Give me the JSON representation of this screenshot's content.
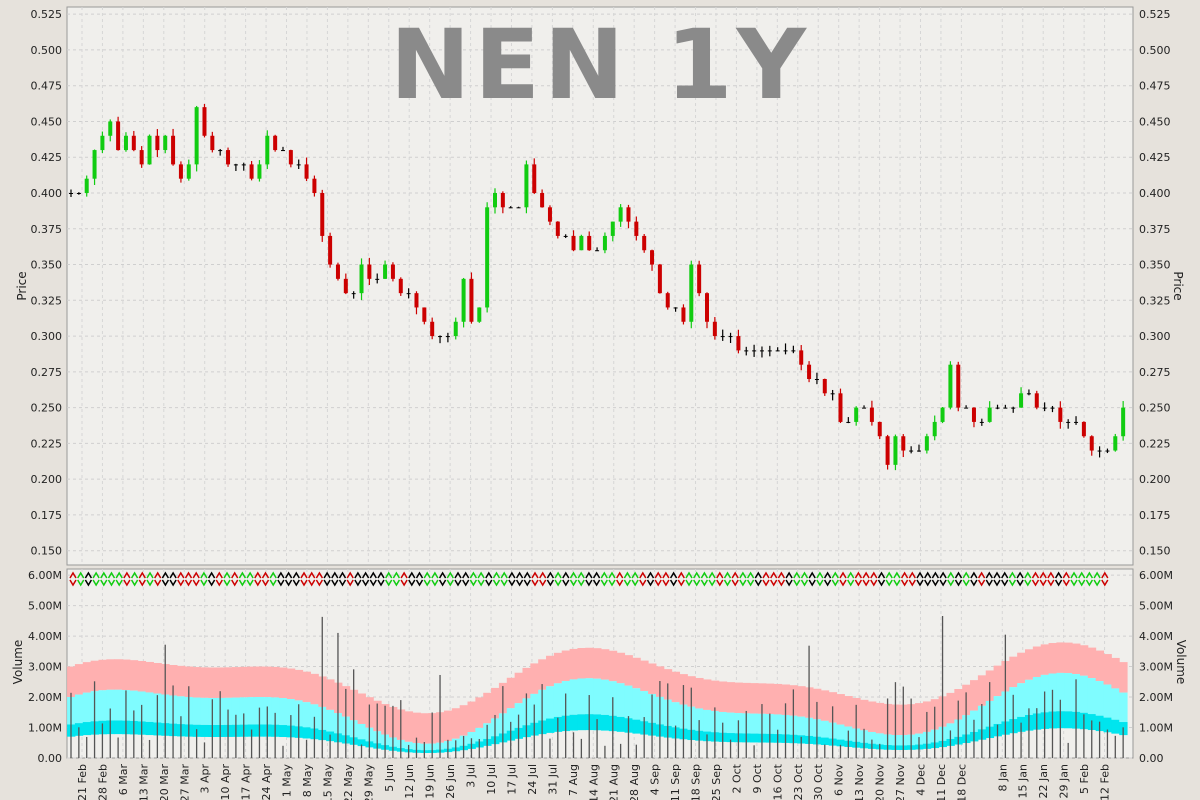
{
  "chart_data": [
    {
      "type": "ohlc",
      "title": "NEN 1Y",
      "ylabel": "Price",
      "ylim": [
        0.14,
        0.53
      ],
      "yticks": [
        "0.525",
        "0.500",
        "0.475",
        "0.450",
        "0.425",
        "0.400",
        "0.375",
        "0.350",
        "0.325",
        "0.300",
        "0.275",
        "0.250",
        "0.225",
        "0.200",
        "0.175",
        "0.150"
      ],
      "grid": true,
      "close_approx": [
        0.4,
        0.4,
        0.41,
        0.43,
        0.44,
        0.45,
        0.43,
        0.44,
        0.43,
        0.42,
        0.44,
        0.43,
        0.44,
        0.42,
        0.41,
        0.42,
        0.46,
        0.44,
        0.43,
        0.43,
        0.42,
        0.42,
        0.42,
        0.41,
        0.42,
        0.44,
        0.43,
        0.43,
        0.42,
        0.42,
        0.41,
        0.4,
        0.37,
        0.35,
        0.34,
        0.33,
        0.33,
        0.35,
        0.34,
        0.34,
        0.35,
        0.34,
        0.33,
        0.33,
        0.32,
        0.31,
        0.3,
        0.3,
        0.3,
        0.31,
        0.34,
        0.31,
        0.32,
        0.39,
        0.4,
        0.39,
        0.39,
        0.39,
        0.42,
        0.4,
        0.39,
        0.38,
        0.37,
        0.37,
        0.36,
        0.37,
        0.36,
        0.36,
        0.37,
        0.38,
        0.39,
        0.38,
        0.37,
        0.36,
        0.35,
        0.33,
        0.32,
        0.32,
        0.31,
        0.35,
        0.33,
        0.31,
        0.3,
        0.3,
        0.3,
        0.29,
        0.29,
        0.29,
        0.29,
        0.29,
        0.29,
        0.29,
        0.29,
        0.28,
        0.27,
        0.27,
        0.26,
        0.26,
        0.24,
        0.24,
        0.25,
        0.25,
        0.24,
        0.23,
        0.21,
        0.23,
        0.22,
        0.22,
        0.22,
        0.23,
        0.24,
        0.25,
        0.28,
        0.25,
        0.25,
        0.24,
        0.24,
        0.25,
        0.25,
        0.25,
        0.25,
        0.26,
        0.26,
        0.25,
        0.25,
        0.25,
        0.24,
        0.24,
        0.24,
        0.23,
        0.22,
        0.22,
        0.22,
        0.23,
        0.25
      ]
    },
    {
      "type": "bar",
      "ylabel": "Volume",
      "ylim": [
        0,
        6200000
      ],
      "yticks": [
        "6.00M",
        "5.00M",
        "4.00M",
        "3.00M",
        "2.00M",
        "1.00M",
        "0.00"
      ],
      "grid": true
    }
  ],
  "xticks": [
    "21 Feb",
    "28 Feb",
    "6 Mar",
    "13 Mar",
    "20 Mar",
    "27 Mar",
    "3 Apr",
    "10 Apr",
    "17 Apr",
    "24 Apr",
    "1 May",
    "8 May",
    "15 May",
    "22 May",
    "29 May",
    "5 Jun",
    "12 Jun",
    "19 Jun",
    "26 Jun",
    "3 Jul",
    "10 Jul",
    "17 Jul",
    "24 Jul",
    "31 Jul",
    "7 Aug",
    "14 Aug",
    "21 Aug",
    "28 Aug",
    "4 Sep",
    "11 Sep",
    "18 Sep",
    "25 Sep",
    "2 Oct",
    "9 Oct",
    "16 Oct",
    "23 Oct",
    "30 Oct",
    "6 Nov",
    "13 Nov",
    "20 Nov",
    "27 Nov",
    "4 Dec",
    "11 Dec",
    "18 Dec",
    "8 Jan",
    "15 Jan",
    "22 Jan",
    "29 Jan",
    "5 Feb",
    "12 Feb"
  ],
  "colors": {
    "up": "#11cc11",
    "down": "#cc0000",
    "flat": "#000000",
    "band_outer": "#ffb0b0",
    "band_mid": "#7ffcff",
    "band_inner": "#00e5ee"
  }
}
